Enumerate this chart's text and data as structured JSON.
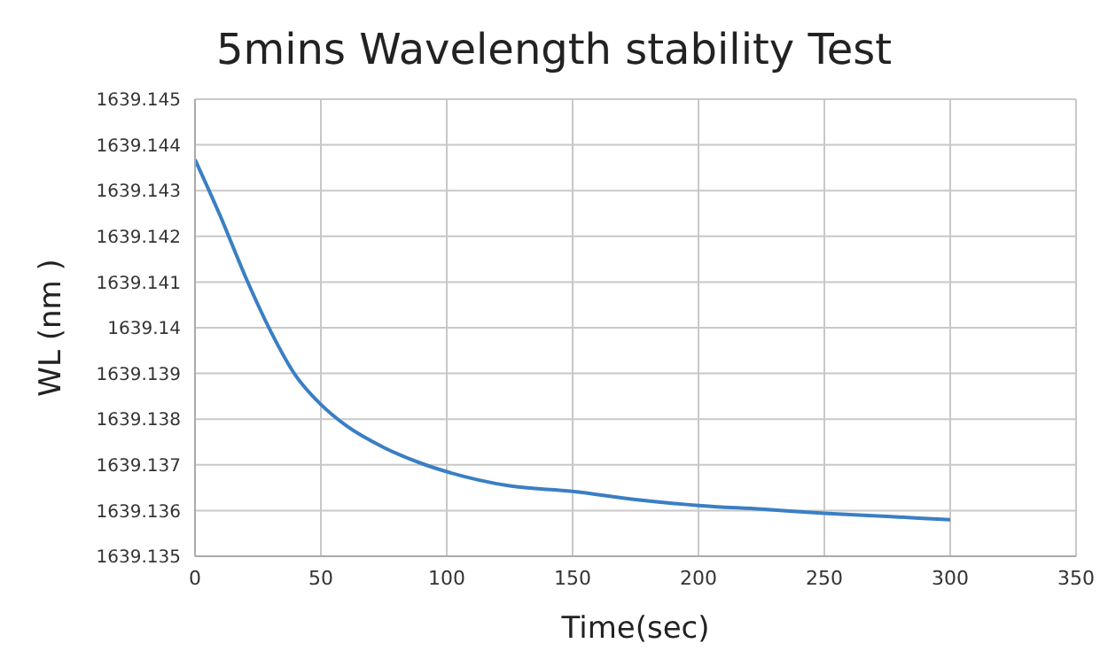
{
  "chart_data": {
    "type": "line",
    "title": "5mins Wavelength stability Test",
    "xlabel": "Time(sec)",
    "ylabel": "WL (nm )",
    "x": [
      0,
      10,
      20,
      30,
      40,
      50,
      60,
      75,
      90,
      100,
      125,
      150,
      175,
      200,
      225,
      250,
      275,
      300
    ],
    "series": [
      {
        "color": "#3a7fc4",
        "values": [
          1639.14368,
          1639.14245,
          1639.14112,
          1639.13993,
          1639.13895,
          1639.13832,
          1639.13786,
          1639.13738,
          1639.13703,
          1639.13685,
          1639.13654,
          1639.13642,
          1639.13624,
          1639.13611,
          1639.13603,
          1639.13594,
          1639.13587,
          1639.1358
        ]
      }
    ],
    "xlim": [
      0,
      350
    ],
    "xticks": [
      0,
      50,
      100,
      150,
      200,
      250,
      300,
      350
    ],
    "ylim": [
      1639.135,
      1639.145
    ],
    "yticks": [
      1639.135,
      1639.136,
      1639.137,
      1639.138,
      1639.139,
      1639.14,
      1639.141,
      1639.142,
      1639.143,
      1639.144,
      1639.145
    ],
    "grid": true,
    "legend": false,
    "marker": "none",
    "line_style": "solid"
  }
}
